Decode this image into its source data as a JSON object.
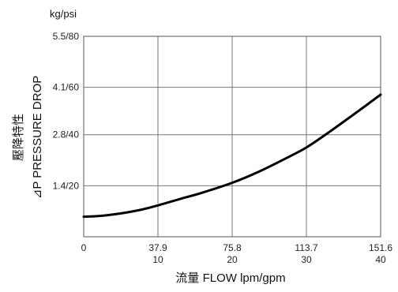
{
  "chart_data": {
    "type": "line",
    "y_unit_label": "kg/psi",
    "xlabel": "流量 FLOW lpm/gpm",
    "ylabel_line1": "壓降特性",
    "ylabel_line2": "⊿P PRESSURE DROP",
    "xlim": [
      0,
      151.6
    ],
    "ylim": [
      0,
      5.5
    ],
    "grid": true,
    "x_ticks": [
      {
        "value": 0,
        "label_top": "0",
        "label_bottom": ""
      },
      {
        "value": 37.9,
        "label_top": "37.9",
        "label_bottom": "10"
      },
      {
        "value": 75.8,
        "label_top": "75.8",
        "label_bottom": "20"
      },
      {
        "value": 113.7,
        "label_top": "113.7",
        "label_bottom": "30"
      },
      {
        "value": 151.6,
        "label_top": "151.6",
        "label_bottom": "40"
      }
    ],
    "y_ticks": [
      {
        "value": 1.4,
        "label": "1.4/20"
      },
      {
        "value": 2.8,
        "label": "2.8/40"
      },
      {
        "value": 4.1,
        "label": "4.1/60"
      },
      {
        "value": 5.5,
        "label": "5.5/80"
      }
    ],
    "series": [
      {
        "x": [
          0,
          10,
          20,
          30,
          37.9,
          50,
          60,
          75.8,
          90,
          105,
          113.7,
          125,
          140,
          151.6
        ],
        "y": [
          0.55,
          0.58,
          0.65,
          0.75,
          0.86,
          1.05,
          1.2,
          1.48,
          1.8,
          2.2,
          2.45,
          2.86,
          3.44,
          3.9
        ]
      }
    ],
    "colors": {
      "line": "#000000",
      "grid": "#777777",
      "frame": "#555555"
    }
  }
}
